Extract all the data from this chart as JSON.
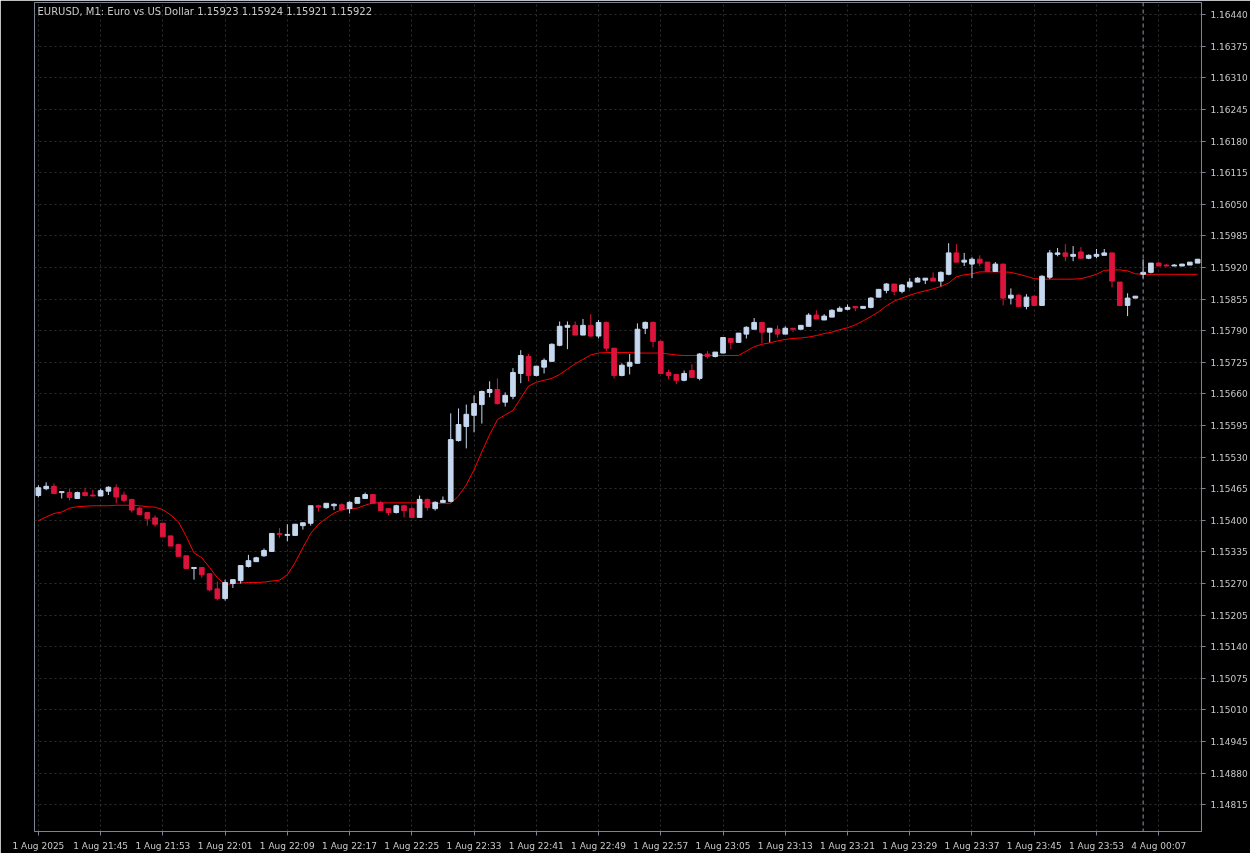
{
  "chart_data": {
    "type": "candlestick",
    "title": "EURUSD, M1:  Euro vs US Dollar  1.15923 1.15924 1.15921 1.15922",
    "categories": [
      "1 Aug 2025",
      null,
      null,
      null,
      null,
      null,
      null,
      null,
      "1 Aug 21:45",
      null,
      null,
      null,
      null,
      null,
      null,
      null,
      "1 Aug 21:53",
      null,
      null,
      null,
      null,
      null,
      null,
      null,
      "1 Aug 22:01",
      null,
      null,
      null,
      null,
      null,
      null,
      null,
      "1 Aug 22:09",
      null,
      null,
      null,
      null,
      null,
      null,
      null,
      "1 Aug 22:17",
      null,
      null,
      null,
      null,
      null,
      null,
      null,
      "1 Aug 22:25",
      null,
      null,
      null,
      null,
      null,
      null,
      null,
      "1 Aug 22:33",
      null,
      null,
      null,
      null,
      null,
      null,
      null,
      "1 Aug 22:41",
      null,
      null,
      null,
      null,
      null,
      null,
      null,
      "1 Aug 22:49",
      null,
      null,
      null,
      null,
      null,
      null,
      null,
      "1 Aug 22:57",
      null,
      null,
      null,
      null,
      null,
      null,
      null,
      "1 Aug 23:05",
      null,
      null,
      null,
      null,
      null,
      null,
      null,
      "1 Aug 23:13",
      null,
      null,
      null,
      null,
      null,
      null,
      null,
      "1 Aug 23:21",
      null,
      null,
      null,
      null,
      null,
      null,
      null,
      "1 Aug 23:29",
      null,
      null,
      null,
      null,
      null,
      null,
      null,
      "1 Aug 23:37",
      null,
      null,
      null,
      null,
      null,
      null,
      null,
      "1 Aug 23:45",
      null,
      null,
      null,
      null,
      null,
      null,
      null,
      "1 Aug 23:53",
      null,
      null,
      null,
      null,
      null,
      null,
      null,
      "4 Aug 00:07",
      null,
      null,
      null,
      null,
      null
    ],
    "ohlc": [
      [
        1.15451,
        1.15472,
        1.15447,
        1.15467
      ],
      [
        1.15465,
        1.15478,
        1.15462,
        1.1547
      ],
      [
        1.1547,
        1.15476,
        1.15455,
        1.15455
      ],
      [
        1.15457,
        1.15459,
        1.15445,
        1.15459
      ],
      [
        1.15457,
        1.15465,
        1.15441,
        1.15447
      ],
      [
        1.15445,
        1.15459,
        1.15445,
        1.15457
      ],
      [
        1.15457,
        1.15467,
        1.15449,
        1.15451
      ],
      [
        1.15452,
        1.15463,
        1.1545,
        1.1545
      ],
      [
        1.1545,
        1.15465,
        1.1545,
        1.15461
      ],
      [
        1.1546,
        1.1547,
        1.15452,
        1.15468
      ],
      [
        1.15467,
        1.15474,
        1.15435,
        1.15448
      ],
      [
        1.15452,
        1.15459,
        1.15437,
        1.15441
      ],
      [
        1.15443,
        1.15443,
        1.15416,
        1.15421
      ],
      [
        1.15425,
        1.15428,
        1.15412,
        1.15412
      ],
      [
        1.15416,
        1.15416,
        1.15389,
        1.15403
      ],
      [
        1.15405,
        1.1541,
        1.15387,
        1.15392
      ],
      [
        1.15394,
        1.15394,
        1.15366,
        1.15366
      ],
      [
        1.15368,
        1.15368,
        1.15347,
        1.15347
      ],
      [
        1.1535,
        1.15352,
        1.15325,
        1.15326
      ],
      [
        1.15327,
        1.15327,
        1.15301,
        1.15301
      ],
      [
        1.15301,
        1.15303,
        1.15278,
        1.15303
      ],
      [
        1.15303,
        1.15303,
        1.15282,
        1.15288
      ],
      [
        1.1529,
        1.1529,
        1.15254,
        1.15257
      ],
      [
        1.15259,
        1.15274,
        1.15235,
        1.15239
      ],
      [
        1.15239,
        1.15278,
        1.15235,
        1.15272
      ],
      [
        1.1527,
        1.15278,
        1.15261,
        1.15278
      ],
      [
        1.15276,
        1.15307,
        1.1527,
        1.15307
      ],
      [
        1.15305,
        1.15329,
        1.15303,
        1.15317
      ],
      [
        1.15315,
        1.15325,
        1.15315,
        1.15323
      ],
      [
        1.15327,
        1.15342,
        1.15325,
        1.15338
      ],
      [
        1.15336,
        1.15373,
        1.15336,
        1.15373
      ],
      [
        1.15373,
        1.15384,
        1.15364,
        1.15371
      ],
      [
        1.15369,
        1.15392,
        1.15357,
        1.15371
      ],
      [
        1.15369,
        1.15392,
        1.15369,
        1.15392
      ],
      [
        1.15389,
        1.15395,
        1.15381,
        1.15395
      ],
      [
        1.15394,
        1.1543,
        1.15389,
        1.1543
      ],
      [
        1.1543,
        1.15432,
        1.15418,
        1.15427
      ],
      [
        1.15426,
        1.15435,
        1.15424,
        1.15435
      ],
      [
        1.1543,
        1.15435,
        1.15421,
        1.15433
      ],
      [
        1.15432,
        1.15435,
        1.15419,
        1.15422
      ],
      [
        1.15424,
        1.15439,
        1.15414,
        1.15437
      ],
      [
        1.15435,
        1.15447,
        1.15435,
        1.15447
      ],
      [
        1.15445,
        1.15457,
        1.15445,
        1.15453
      ],
      [
        1.15453,
        1.15453,
        1.15435,
        1.15435
      ],
      [
        1.15436,
        1.1544,
        1.1542,
        1.1542
      ],
      [
        1.15424,
        1.15424,
        1.1541,
        1.15416
      ],
      [
        1.15416,
        1.15432,
        1.15414,
        1.1543
      ],
      [
        1.1543,
        1.15432,
        1.15406,
        1.1542
      ],
      [
        1.15424,
        1.15428,
        1.15406,
        1.15406
      ],
      [
        1.15406,
        1.15451,
        1.15405,
        1.15443
      ],
      [
        1.15443,
        1.15445,
        1.1542,
        1.15426
      ],
      [
        1.15424,
        1.15439,
        1.1542,
        1.15437
      ],
      [
        1.15437,
        1.15449,
        1.15437,
        1.15441
      ],
      [
        1.15439,
        1.1562,
        1.15437,
        1.15566
      ],
      [
        1.15564,
        1.1563,
        1.15562,
        1.15597
      ],
      [
        1.15593,
        1.15638,
        1.15548,
        1.15618
      ],
      [
        1.15616,
        1.15657,
        1.15581,
        1.1564
      ],
      [
        1.15638,
        1.15667,
        1.15599,
        1.15665
      ],
      [
        1.15663,
        1.15686,
        1.15653,
        1.15669
      ],
      [
        1.15669,
        1.15692,
        1.15638,
        1.1564
      ],
      [
        1.15643,
        1.15663,
        1.15634,
        1.15657
      ],
      [
        1.15655,
        1.15713,
        1.15649,
        1.15704
      ],
      [
        1.15702,
        1.1575,
        1.15682,
        1.15739
      ],
      [
        1.15737,
        1.15742,
        1.15686,
        1.15698
      ],
      [
        1.15698,
        1.15717,
        1.15696,
        1.15717
      ],
      [
        1.15715,
        1.15733,
        1.15702,
        1.15729
      ],
      [
        1.15727,
        1.15764,
        1.15727,
        1.15762
      ],
      [
        1.1576,
        1.15809,
        1.15758,
        1.15799
      ],
      [
        1.15797,
        1.15809,
        1.15752,
        1.15801
      ],
      [
        1.15801,
        1.15809,
        1.15781,
        1.15781
      ],
      [
        1.15781,
        1.15814,
        1.15781,
        1.15801
      ],
      [
        1.15801,
        1.15824,
        1.15776,
        1.15779
      ],
      [
        1.15779,
        1.15812,
        1.15774,
        1.15807
      ],
      [
        1.15807,
        1.15809,
        1.15748,
        1.15754
      ],
      [
        1.15754,
        1.15754,
        1.15692,
        1.15698
      ],
      [
        1.15698,
        1.15723,
        1.15696,
        1.15719
      ],
      [
        1.15717,
        1.15742,
        1.157,
        1.15725
      ],
      [
        1.15723,
        1.15805,
        1.15723,
        1.15793
      ],
      [
        1.15795,
        1.15809,
        1.15783,
        1.15807
      ],
      [
        1.15807,
        1.15809,
        1.15756,
        1.15768
      ],
      [
        1.15768,
        1.1577,
        1.15702,
        1.15702
      ],
      [
        1.15704,
        1.1571,
        1.1569,
        1.15698
      ],
      [
        1.157,
        1.157,
        1.1568,
        1.15688
      ],
      [
        1.15688,
        1.15708,
        1.15686,
        1.15702
      ],
      [
        1.15708,
        1.15721,
        1.15694,
        1.15694
      ],
      [
        1.15692,
        1.15744,
        1.15688,
        1.15742
      ],
      [
        1.15742,
        1.15748,
        1.15733,
        1.15737
      ],
      [
        1.15737,
        1.15746,
        1.15735,
        1.15746
      ],
      [
        1.15744,
        1.15776,
        1.15744,
        1.15776
      ],
      [
        1.15774,
        1.15774,
        1.15752,
        1.15766
      ],
      [
        1.15766,
        1.15785,
        1.15766,
        1.15785
      ],
      [
        1.15783,
        1.15799,
        1.15774,
        1.15797
      ],
      [
        1.15793,
        1.15816,
        1.15793,
        1.15807
      ],
      [
        1.15807,
        1.15807,
        1.15764,
        1.15787
      ],
      [
        1.15787,
        1.15795,
        1.15766,
        1.15795
      ],
      [
        1.15793,
        1.15801,
        1.15776,
        1.15783
      ],
      [
        1.15783,
        1.15799,
        1.15783,
        1.15795
      ],
      [
        1.15795,
        1.15795,
        1.15787,
        1.15793
      ],
      [
        1.15793,
        1.15801,
        1.15793,
        1.15801
      ],
      [
        1.15799,
        1.15826,
        1.15799,
        1.15822
      ],
      [
        1.15822,
        1.15832,
        1.15814,
        1.15814
      ],
      [
        1.15812,
        1.15824,
        1.15812,
        1.1582
      ],
      [
        1.15818,
        1.15834,
        1.15818,
        1.15832
      ],
      [
        1.1583,
        1.1584,
        1.1583,
        1.15836
      ],
      [
        1.15834,
        1.15844,
        1.15832,
        1.15838
      ],
      [
        1.1584,
        1.1584,
        1.1583,
        1.15837
      ],
      [
        1.15836,
        1.1584,
        1.15836,
        1.1584
      ],
      [
        1.15838,
        1.15859,
        1.15836,
        1.15857
      ],
      [
        1.15859,
        1.15875,
        1.15859,
        1.15875
      ],
      [
        1.15873,
        1.15888,
        1.15867,
        1.15886
      ],
      [
        1.15886,
        1.15886,
        1.15863,
        1.15871
      ],
      [
        1.15871,
        1.15886,
        1.15867,
        1.15884
      ],
      [
        1.1588,
        1.15898,
        1.15877,
        1.1589
      ],
      [
        1.1589,
        1.159,
        1.1589,
        1.15898
      ],
      [
        1.15894,
        1.15898,
        1.15886,
        1.15898
      ],
      [
        1.15898,
        1.1591,
        1.15892,
        1.15892
      ],
      [
        1.15892,
        1.15912,
        1.15881,
        1.1591
      ],
      [
        1.15906,
        1.1597,
        1.15904,
        1.1595
      ],
      [
        1.1595,
        1.15968,
        1.15931,
        1.15931
      ],
      [
        1.15931,
        1.1595,
        1.15923,
        1.15935
      ],
      [
        1.15927,
        1.15941,
        1.15898,
        1.15937
      ],
      [
        1.15937,
        1.15945,
        1.15923,
        1.15929
      ],
      [
        1.15931,
        1.15931,
        1.15912,
        1.15912
      ],
      [
        1.15912,
        1.15931,
        1.15912,
        1.15927
      ],
      [
        1.15927,
        1.15927,
        1.15842,
        1.15857
      ],
      [
        1.15857,
        1.15877,
        1.15844,
        1.15863
      ],
      [
        1.15863,
        1.15865,
        1.15838,
        1.1584
      ],
      [
        1.1584,
        1.15865,
        1.15834,
        1.15859
      ],
      [
        1.15861,
        1.15861,
        1.15842,
        1.15842
      ],
      [
        1.15842,
        1.15904,
        1.15842,
        1.15902
      ],
      [
        1.159,
        1.15956,
        1.15896,
        1.1595
      ],
      [
        1.15947,
        1.1596,
        1.15943,
        1.1595
      ],
      [
        1.1595,
        1.15968,
        1.15933,
        1.15943
      ],
      [
        1.15943,
        1.15964,
        1.15933,
        1.15947
      ],
      [
        1.15952,
        1.15962,
        1.15939,
        1.15939
      ],
      [
        1.15939,
        1.15947,
        1.15937,
        1.15945
      ],
      [
        1.15943,
        1.15958,
        1.15939,
        1.15947
      ],
      [
        1.15945,
        1.15958,
        1.15945,
        1.1595
      ],
      [
        1.1595,
        1.1595,
        1.15879,
        1.15892
      ],
      [
        1.1589,
        1.1589,
        1.15842,
        1.15842
      ],
      [
        1.15842,
        1.15867,
        1.1582,
        1.15857
      ],
      [
        1.15857,
        1.15861,
        1.15857,
        1.15861
      ],
      [
        1.15906,
        1.15937,
        1.15898,
        1.1591
      ],
      [
        1.1591,
        1.15929,
        1.15908,
        1.15929
      ],
      [
        1.15929,
        1.15931,
        1.15923,
        1.15923
      ],
      [
        1.15925,
        1.15927,
        1.15923,
        1.15923
      ],
      [
        1.15923,
        1.15927,
        1.15923,
        1.15925
      ],
      [
        1.15923,
        1.15927,
        1.15923,
        1.15927
      ],
      [
        1.15925,
        1.15931,
        1.15925,
        1.15931
      ],
      [
        1.15929,
        1.15937,
        1.15929,
        1.15937
      ]
    ],
    "colors": [
      "#c6d8f0",
      "#c6d8f0",
      "#dc143c",
      "#c6d8f0",
      "#dc143c",
      "#c6d8f0",
      "#dc143c",
      "#dc143c",
      "#c6d8f0",
      "#c6d8f0",
      "#dc143c",
      "#dc143c",
      "#dc143c",
      "#dc143c",
      "#dc143c",
      "#dc143c",
      "#dc143c",
      "#dc143c",
      "#dc143c",
      "#dc143c",
      "#c6d8f0",
      "#dc143c",
      "#dc143c",
      "#dc143c",
      "#c6d8f0",
      "#c6d8f0",
      "#c6d8f0",
      "#c6d8f0",
      "#c6d8f0",
      "#c6d8f0",
      "#c6d8f0",
      "#dc143c",
      "#c6d8f0",
      "#c6d8f0",
      "#c6d8f0",
      "#c6d8f0",
      "#dc143c",
      "#c6d8f0",
      "#c6d8f0",
      "#dc143c",
      "#c6d8f0",
      "#c6d8f0",
      "#c6d8f0",
      "#dc143c",
      "#dc143c",
      "#dc143c",
      "#c6d8f0",
      "#dc143c",
      "#dc143c",
      "#c6d8f0",
      "#dc143c",
      "#c6d8f0",
      "#c6d8f0",
      "#c6d8f0",
      "#c6d8f0",
      "#c6d8f0",
      "#c6d8f0",
      "#c6d8f0",
      "#c6d8f0",
      "#dc143c",
      "#c6d8f0",
      "#c6d8f0",
      "#c6d8f0",
      "#dc143c",
      "#c6d8f0",
      "#c6d8f0",
      "#c6d8f0",
      "#c6d8f0",
      "#c6d8f0",
      "#dc143c",
      "#c6d8f0",
      "#dc143c",
      "#c6d8f0",
      "#dc143c",
      "#dc143c",
      "#c6d8f0",
      "#c6d8f0",
      "#c6d8f0",
      "#c6d8f0",
      "#dc143c",
      "#dc143c",
      "#dc143c",
      "#dc143c",
      "#c6d8f0",
      "#dc143c",
      "#c6d8f0",
      "#dc143c",
      "#c6d8f0",
      "#c6d8f0",
      "#dc143c",
      "#c6d8f0",
      "#c6d8f0",
      "#c6d8f0",
      "#dc143c",
      "#c6d8f0",
      "#dc143c",
      "#c6d8f0",
      "#dc143c",
      "#c6d8f0",
      "#c6d8f0",
      "#dc143c",
      "#c6d8f0",
      "#c6d8f0",
      "#c6d8f0",
      "#c6d8f0",
      "#dc143c",
      "#c6d8f0",
      "#c6d8f0",
      "#c6d8f0",
      "#c6d8f0",
      "#dc143c",
      "#c6d8f0",
      "#c6d8f0",
      "#c6d8f0",
      "#c6d8f0",
      "#dc143c",
      "#c6d8f0",
      "#c6d8f0",
      "#dc143c",
      "#c6d8f0",
      "#c6d8f0",
      "#dc143c",
      "#dc143c",
      "#c6d8f0",
      "#dc143c",
      "#c6d8f0",
      "#dc143c",
      "#c6d8f0",
      "#dc143c",
      "#c6d8f0",
      "#c6d8f0",
      "#c6d8f0",
      "#dc143c",
      "#c6d8f0",
      "#dc143c",
      "#c6d8f0",
      "#c6d8f0",
      "#c6d8f0",
      "#dc143c",
      "#dc143c",
      "#c6d8f0",
      "#c6d8f0",
      "#c6d8f0",
      "#c6d8f0",
      "#dc143c",
      "#dc143c",
      "#c6d8f0",
      "#c6d8f0",
      "#c6d8f0",
      "#c6d8f0"
    ],
    "series": [
      {
        "type": "line",
        "color": "#ff0000",
        "values": [
          1.15399,
          1.15407,
          1.15414,
          1.15417,
          1.15425,
          1.15428,
          1.15429,
          1.1543,
          1.1543,
          1.1543,
          1.15431,
          1.15431,
          1.15431,
          1.1543,
          1.15428,
          1.15427,
          1.15422,
          1.15411,
          1.15397,
          1.15367,
          1.15333,
          1.15323,
          1.15303,
          1.15282,
          1.15268,
          1.1527,
          1.15271,
          1.15272,
          1.15272,
          1.15273,
          1.15275,
          1.15277,
          1.15288,
          1.15313,
          1.15344,
          1.15373,
          1.15392,
          1.15404,
          1.15415,
          1.15422,
          1.15424,
          1.15425,
          1.15431,
          1.15436,
          1.15436,
          1.15436,
          1.15436,
          1.15436,
          1.15436,
          1.15436,
          1.15436,
          1.15435,
          1.15435,
          1.15435,
          1.1545,
          1.15473,
          1.15504,
          1.15541,
          1.15576,
          1.15607,
          1.15617,
          1.15626,
          1.15651,
          1.15676,
          1.15684,
          1.15688,
          1.15692,
          1.157,
          1.15711,
          1.15722,
          1.15731,
          1.1574,
          1.15744,
          1.15745,
          1.15745,
          1.15745,
          1.15745,
          1.15744,
          1.15744,
          1.15744,
          1.15744,
          1.15742,
          1.1574,
          1.15739,
          1.15739,
          1.15739,
          1.15739,
          1.15739,
          1.15739,
          1.15739,
          1.15739,
          1.15748,
          1.15757,
          1.15762,
          1.15765,
          1.15769,
          1.15772,
          1.15774,
          1.15775,
          1.15777,
          1.1578,
          1.15784,
          1.15787,
          1.15792,
          1.15796,
          1.15802,
          1.1581,
          1.15819,
          1.15829,
          1.15841,
          1.15851,
          1.15857,
          1.15863,
          1.15868,
          1.15872,
          1.15876,
          1.15881,
          1.15888,
          1.15901,
          1.15905,
          1.15907,
          1.15911,
          1.15911,
          1.15911,
          1.15911,
          1.1591,
          1.15906,
          1.15902,
          1.15897,
          1.15896,
          1.15896,
          1.15896,
          1.15896,
          1.15896,
          1.15897,
          1.15901,
          1.15906,
          1.15914,
          1.15915,
          1.15915,
          1.15913,
          1.15907,
          1.15906,
          1.15906,
          1.15906,
          1.15906,
          1.15906,
          1.15906,
          1.15906,
          1.15906
        ]
      }
    ],
    "ylim": [
      1.1476,
      1.16465
    ],
    "yticks": [
      1.14815,
      {
        "value": 1.1488,
        "label": "1.14880"
      },
      1.14945,
      {
        "value": 1.1501,
        "label": "1.15010"
      },
      1.15075,
      {
        "value": 1.1514,
        "label": "1.15140"
      },
      1.15205,
      {
        "value": 1.1527,
        "label": "1.15270"
      },
      1.15335,
      {
        "value": 1.154,
        "label": "1.15400"
      },
      1.15465,
      {
        "value": 1.1553,
        "label": "1.15530"
      },
      1.15595,
      {
        "value": 1.1566,
        "label": "1.15660"
      },
      1.15725,
      {
        "value": 1.1579,
        "label": "1.15790"
      },
      1.15855,
      {
        "value": 1.1592,
        "label": "1.15920"
      },
      1.15985,
      {
        "value": 1.1605,
        "label": "1.16050"
      },
      1.16115,
      {
        "value": 1.1618,
        "label": "1.16180"
      },
      1.16245,
      {
        "value": 1.1631,
        "label": "1.16310"
      },
      1.16375,
      {
        "value": 1.1644,
        "label": "1.16440"
      }
    ],
    "grid": true
  }
}
